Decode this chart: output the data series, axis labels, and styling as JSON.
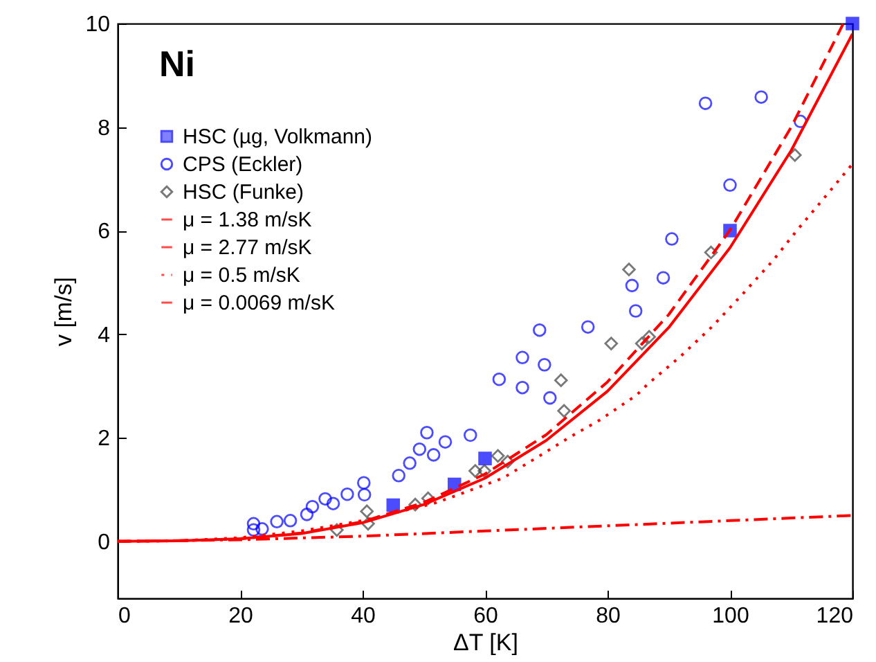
{
  "chart_data": {
    "type": "scatter",
    "xlabel": "ΔT [K]",
    "ylabel": "v [m/s]",
    "annotations": [
      "Ni"
    ],
    "xlim": [
      0,
      120
    ],
    "ylim": [
      -1.1,
      10
    ],
    "xticks": [
      0,
      20,
      40,
      60,
      80,
      100,
      120
    ],
    "yticks": [
      0,
      2,
      4,
      6,
      8,
      10
    ],
    "grid": false,
    "legend": "top left",
    "series": [
      {
        "name": "HSC (µg, Volkmann)",
        "marker": "square",
        "color": "#0000ff",
        "x": [
          45,
          55,
          60,
          100,
          120
        ],
        "values": [
          0.7,
          1.1,
          1.6,
          6.0,
          10.0
        ]
      },
      {
        "name": "CPS (Eckler)",
        "marker": "circle",
        "color": "#0000ff",
        "x": [
          22.2,
          22.2,
          23.6,
          26.0,
          28.2,
          30.9,
          31.8,
          33.9,
          35.2,
          37.5,
          40.2,
          40.3,
          45.9,
          47.7,
          49.3,
          50.5,
          51.6,
          53.5,
          57.6,
          62.3,
          66.1,
          66.1,
          68.9,
          69.7,
          70.6,
          76.8,
          84.0,
          84.6,
          89.1,
          90.5,
          96.0,
          100.0,
          105.1,
          111.5
        ],
        "values": [
          0.34,
          0.22,
          0.24,
          0.38,
          0.4,
          0.52,
          0.67,
          0.82,
          0.73,
          0.91,
          1.13,
          0.9,
          1.27,
          1.51,
          1.78,
          2.1,
          1.67,
          1.92,
          2.05,
          3.13,
          3.55,
          2.97,
          4.08,
          3.41,
          2.77,
          4.14,
          4.94,
          4.45,
          5.09,
          5.84,
          8.46,
          6.88,
          8.58,
          8.11
        ]
      },
      {
        "name": "HSC (Funke)",
        "marker": "diamond",
        "color": "#404040",
        "x": [
          35.8,
          40.7,
          40.9,
          48.6,
          50.7,
          58.4,
          59.9,
          62.1,
          63.7,
          72.4,
          72.9,
          80.6,
          83.5,
          85.6,
          86.8,
          96.9,
          110.6
        ],
        "values": [
          0.22,
          0.58,
          0.34,
          0.71,
          0.83,
          1.36,
          1.36,
          1.65,
          1.54,
          3.11,
          2.52,
          3.82,
          5.25,
          3.82,
          3.95,
          5.58,
          7.46
        ]
      },
      {
        "name": "μ = 1.38 m/sK",
        "type": "line",
        "line_style": "solid",
        "color": "#ff0000",
        "x": [
          0,
          10,
          20,
          30,
          40,
          50,
          60,
          70,
          80,
          90,
          100,
          110,
          120
        ],
        "values": [
          0,
          0.01,
          0.05,
          0.15,
          0.36,
          0.71,
          1.22,
          1.95,
          2.9,
          4.13,
          5.67,
          7.55,
          9.8
        ]
      },
      {
        "name": "μ = 2.77 m/sK",
        "type": "line",
        "line_style": "dashed",
        "color": "#ff0000",
        "x": [
          0,
          10,
          20,
          30,
          40,
          50,
          60,
          70,
          80,
          90,
          100,
          110,
          118.5
        ],
        "values": [
          0,
          0.01,
          0.05,
          0.16,
          0.38,
          0.75,
          1.3,
          2.06,
          3.08,
          4.38,
          6.01,
          8.0,
          10.0
        ]
      },
      {
        "name": "μ = 0.5 m/sK",
        "type": "line",
        "line_style": "dotted",
        "color": "#ff0000",
        "x": [
          0,
          10,
          20,
          30,
          40,
          51.6,
          55.4,
          62.9,
          68.9,
          73.8,
          78.7,
          84.7,
          86.6,
          91.9,
          97.2,
          102.1,
          107,
          111.1,
          115.3,
          120
        ],
        "values": [
          0,
          0.01,
          0.07,
          0.2,
          0.4,
          0.73,
          0.89,
          1.22,
          1.65,
          2.01,
          2.34,
          2.82,
          3.04,
          3.57,
          4.16,
          4.78,
          5.42,
          6.03,
          6.62,
          7.29
        ]
      },
      {
        "name": "μ = 0.0069 m/sK",
        "type": "line",
        "line_style": "dashdot",
        "color": "#ff0000",
        "x": [
          0,
          20,
          40,
          60,
          80,
          100,
          120
        ],
        "values": [
          0,
          0.03,
          0.1,
          0.2,
          0.3,
          0.4,
          0.5
        ]
      }
    ]
  }
}
